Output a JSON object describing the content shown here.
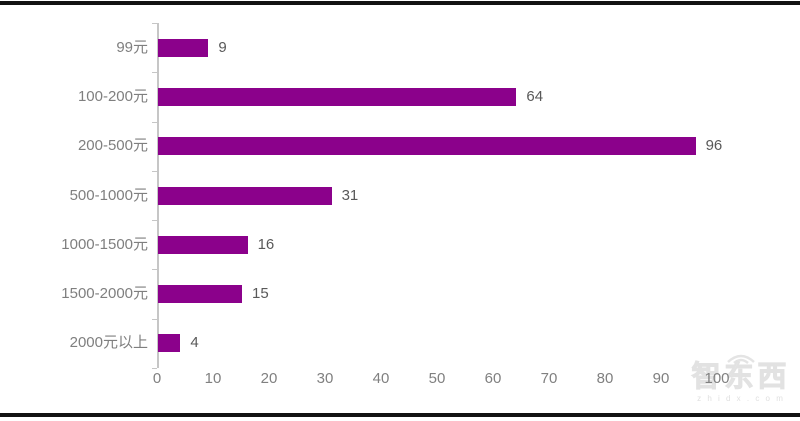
{
  "chart_data": {
    "type": "bar",
    "orientation": "horizontal",
    "title": "",
    "xlabel": "",
    "ylabel": "",
    "categories": [
      "99元",
      "100-200元",
      "200-500元",
      "500-1000元",
      "1000-1500元",
      "1500-2000元",
      "2000元以上"
    ],
    "values": [
      9,
      64,
      96,
      31,
      16,
      15,
      4
    ],
    "xlim": [
      0,
      100
    ],
    "x_ticks": [
      0,
      10,
      20,
      30,
      40,
      50,
      60,
      70,
      80,
      90,
      100
    ],
    "grid": false,
    "data_labels": true,
    "legend": "none",
    "bar_color": "#8B018B",
    "category_label_color": "#7F7F7F",
    "value_label_color": "#595959",
    "tick_label_color": "#808080",
    "axis_color": "#C6C6C6"
  },
  "frame": {
    "border_color": "#121212"
  },
  "watermark": {
    "logo_text": "智东西",
    "domain": "z h i d x . c o m"
  }
}
